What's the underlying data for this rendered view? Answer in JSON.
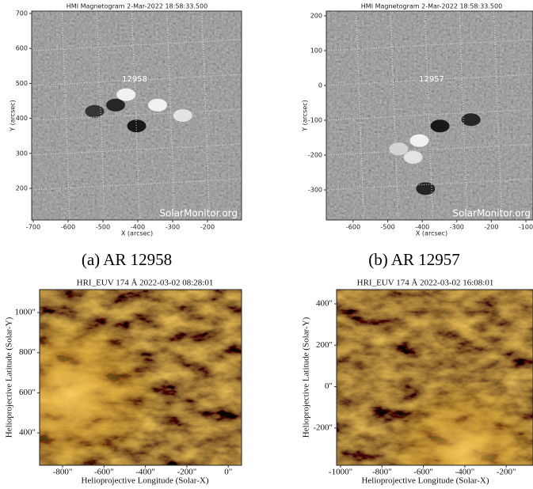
{
  "panels": [
    {
      "title": "HMI Magnetogram   2-Mar-2022 18:58:33.500",
      "x_label": "X (arcsec)",
      "y_label": "Y (arcsec)",
      "x_ticks": [
        "-700",
        "-600",
        "-500",
        "-400",
        "-300",
        "-200"
      ],
      "y_ticks": [
        "700",
        "600",
        "500",
        "400",
        "300",
        "200"
      ],
      "region_label": "12958",
      "watermark": "SolarMonitor.org",
      "caption": "(a) AR 12958"
    },
    {
      "title": "HMI Magnetogram   2-Mar-2022 18:58:33.500",
      "x_label": "X (arcsec)",
      "y_label": "Y (arcsec)",
      "x_ticks": [
        "-600",
        "-500",
        "-400",
        "-300",
        "-200",
        "-100"
      ],
      "y_ticks": [
        "200",
        "100",
        "0",
        "-100",
        "-200",
        "-300"
      ],
      "region_label": "12957",
      "watermark": "SolarMonitor.org",
      "caption": "(b) AR 12957"
    },
    {
      "title": "HRI_EUV 174 Å 2022-03-02 08:28:01",
      "x_label": "Helioprojective Longitude (Solar-X)",
      "y_label": "Helioprojective Latitude (Solar-Y)",
      "x_ticks": [
        "-800\"",
        "-600\"",
        "-400\"",
        "-200\"",
        "0\""
      ],
      "y_ticks": [
        "1000\"",
        "800\"",
        "600\"",
        "400\""
      ]
    },
    {
      "title": "HRI_EUV 174 Å 2022-03-02 16:08:01",
      "x_label": "Helioprojective Longitude (Solar-X)",
      "y_label": "Helioprojective Latitude (Solar-Y)",
      "x_ticks": [
        "-1000\"",
        "-800\"",
        "-600\"",
        "-400\"",
        "-200\""
      ],
      "y_ticks": [
        "400\"",
        "200\"",
        "0\"",
        "-200\""
      ]
    }
  ]
}
